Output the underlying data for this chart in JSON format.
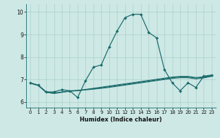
{
  "xlabel": "Humidex (Indice chaleur)",
  "background_color": "#cde8e5",
  "grid_color": "#aacfcc",
  "line_color": "#1a6b6b",
  "xlim": [
    -0.5,
    23.5
  ],
  "ylim": [
    5.75,
    10.35
  ],
  "yticks": [
    6,
    7,
    8,
    9,
    10
  ],
  "xticks": [
    0,
    1,
    2,
    3,
    4,
    5,
    6,
    7,
    8,
    9,
    10,
    11,
    12,
    13,
    14,
    15,
    16,
    17,
    18,
    19,
    20,
    21,
    22,
    23
  ],
  "lines": [
    {
      "y": [
        6.85,
        6.75,
        6.45,
        6.45,
        6.55,
        6.5,
        6.2,
        6.95,
        7.55,
        7.65,
        8.45,
        9.15,
        9.75,
        9.9,
        9.9,
        9.1,
        8.85,
        7.45,
        6.85,
        6.5,
        6.85,
        6.65,
        7.15,
        7.2
      ],
      "marker": true
    },
    {
      "y": [
        6.85,
        6.75,
        6.45,
        6.4,
        6.45,
        6.5,
        6.52,
        6.56,
        6.61,
        6.66,
        6.71,
        6.76,
        6.81,
        6.86,
        6.91,
        6.96,
        7.01,
        7.06,
        7.11,
        7.14,
        7.14,
        7.09,
        7.12,
        7.18
      ],
      "marker": false
    },
    {
      "y": [
        6.84,
        6.74,
        6.44,
        6.39,
        6.44,
        6.49,
        6.51,
        6.55,
        6.59,
        6.63,
        6.68,
        6.73,
        6.78,
        6.83,
        6.88,
        6.93,
        6.98,
        7.03,
        7.08,
        7.11,
        7.11,
        7.06,
        7.1,
        7.16
      ],
      "marker": false
    },
    {
      "y": [
        6.83,
        6.73,
        6.43,
        6.38,
        6.43,
        6.48,
        6.5,
        6.54,
        6.57,
        6.61,
        6.65,
        6.7,
        6.75,
        6.8,
        6.85,
        6.9,
        6.95,
        7.0,
        7.05,
        7.08,
        7.08,
        7.03,
        7.07,
        7.14
      ],
      "marker": false
    }
  ]
}
